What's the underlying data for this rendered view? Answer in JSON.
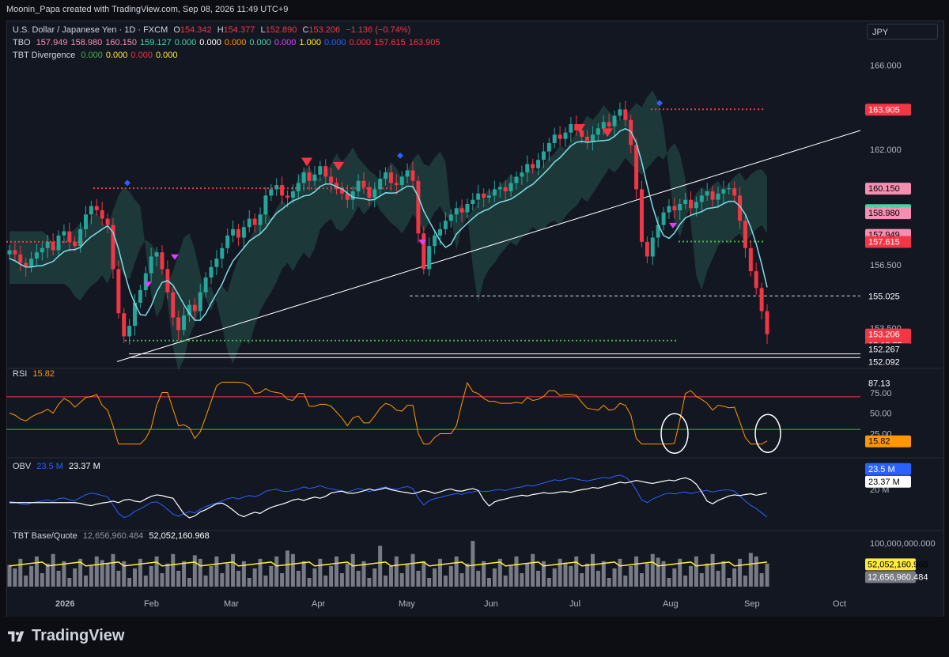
{
  "header": {
    "creator_text": "Moonin_Papa created with TradingView.com, Sep 08, 2026 11:49 UTC+9",
    "symbol_button": "JPY"
  },
  "legend": {
    "main": {
      "title": "U.S. Dollar / Japanese Yen · 1D · FXCM",
      "o_label": "O",
      "o": "154.342",
      "h_label": "H",
      "h": "154.377",
      "l_label": "L",
      "l": "152.890",
      "c_label": "C",
      "c": "153.206",
      "change": "−1.136 (−0.74%)"
    },
    "tbo": {
      "label": "TBO",
      "values": [
        {
          "v": "157.949",
          "color": "#f48fb1"
        },
        {
          "v": "158.980",
          "color": "#f48fb1"
        },
        {
          "v": "160.150",
          "color": "#f48fb1"
        },
        {
          "v": "159.127",
          "color": "#4dd0a8"
        },
        {
          "v": "0.000",
          "color": "#4dd0a8"
        },
        {
          "v": "0.000",
          "color": "#ffffff"
        },
        {
          "v": "0.000",
          "color": "#ff9800"
        },
        {
          "v": "0.000",
          "color": "#4dd0a8"
        },
        {
          "v": "0.000",
          "color": "#e040fb"
        },
        {
          "v": "1.000",
          "color": "#ffeb3b"
        },
        {
          "v": "0.000",
          "color": "#2962ff"
        },
        {
          "v": "0.000",
          "color": "#f23645"
        },
        {
          "v": "157.615",
          "color": "#f23645"
        },
        {
          "v": "163.905",
          "color": "#f23645"
        }
      ]
    },
    "tbt": {
      "label": "TBT Divergence",
      "values": [
        {
          "v": "0.000",
          "color": "#4caf50"
        },
        {
          "v": "0.000",
          "color": "#ffeb3b"
        },
        {
          "v": "0.000",
          "color": "#f23645"
        },
        {
          "v": "0.000",
          "color": "#ffeb3b"
        }
      ]
    },
    "rsi": {
      "label": "RSI",
      "value": "15.82"
    },
    "obv": {
      "label": "OBV",
      "v1": "23.5 M",
      "v2": "23.37 M"
    },
    "base_quote": {
      "label": "TBT Base/Quote",
      "v1": "12,656,960.484",
      "v2": "52,052,160.968"
    }
  },
  "axis": {
    "price_ticks": [
      "166.000",
      "162.000",
      "156.500",
      "153.500"
    ],
    "price_tags": [
      {
        "text": "163.905",
        "bg": "#f23645",
        "fg": "#ffffff"
      },
      {
        "text": "160.150",
        "bg": "#f48fb1",
        "fg": "#000000"
      },
      {
        "text": "159.127",
        "bg": "#4dd0a8",
        "fg": "#000000"
      },
      {
        "text": "158.980",
        "bg": "#f48fb1",
        "fg": "#000000"
      },
      {
        "text": "157.949",
        "bg": "#f48fb1",
        "fg": "#000000"
      },
      {
        "text": "157.615",
        "bg": "#f23645",
        "fg": "#ffffff"
      },
      {
        "text": "155.025",
        "bg": "#131722",
        "fg": "#ffffff"
      },
      {
        "text": "153.206",
        "bg": "#f23645",
        "fg": "#ffffff"
      },
      {
        "text": "18:10:55",
        "bg": "#f23645",
        "fg": "#ffffff"
      },
      {
        "text": "152.267",
        "bg": "#131722",
        "fg": "#ffffff"
      },
      {
        "text": "152.092",
        "bg": "#131722",
        "fg": "#ffffff"
      }
    ],
    "rsi_ticks": [
      "75.00",
      "50.00",
      "25.00"
    ],
    "rsi_tags": [
      {
        "text": "87.13",
        "bg": "#131722",
        "fg": "#ffffff"
      },
      {
        "text": "15.82",
        "bg": "#ff9800",
        "fg": "#000000"
      }
    ],
    "obv_ticks": [
      "20 M"
    ],
    "obv_tags": [
      {
        "text": "23.5 M",
        "bg": "#2962ff",
        "fg": "#ffffff"
      },
      {
        "text": "23.37 M",
        "bg": "#ffffff",
        "fg": "#000000"
      }
    ],
    "vol_ticks": [
      "100,000,000.000"
    ],
    "vol_tags": [
      {
        "text": "52,052,160.968",
        "bg": "#ffeb3b",
        "fg": "#000000"
      },
      {
        "text": "12,656,960.484",
        "bg": "#787b86",
        "fg": "#ffffff"
      }
    ],
    "time_labels": [
      "2026",
      "Feb",
      "Mar",
      "Apr",
      "May",
      "Jun",
      "Jul",
      "Aug",
      "Sep",
      "Oct"
    ]
  },
  "chart_data": {
    "type": "candlestick",
    "title": "U.S. Dollar / Japanese Yen · 1D · FXCM",
    "x_labels": [
      "2026",
      "Feb",
      "Mar",
      "Apr",
      "May",
      "Jun",
      "Jul",
      "Aug",
      "Sep",
      "Oct"
    ],
    "price_range": [
      151.8,
      167.0
    ],
    "ohlc_last": {
      "open": 154.342,
      "high": 154.377,
      "low": 152.89,
      "close": 153.206
    },
    "levels": {
      "resistance_top": 163.905,
      "resistance_mid": 160.15,
      "support_155": 155.025,
      "support_152_267": 152.267,
      "support_152_092": 152.092
    },
    "close_series": [
      157.2,
      157.0,
      156.6,
      156.4,
      156.8,
      157.1,
      157.3,
      157.6,
      157.2,
      157.9,
      158.1,
      157.6,
      157.4,
      158.2,
      158.9,
      159.3,
      159.1,
      158.7,
      158.4,
      156.3,
      154.2,
      153.1,
      153.6,
      154.7,
      155.3,
      156.1,
      156.9,
      157.1,
      156.3,
      155.2,
      154.0,
      153.4,
      154.1,
      154.6,
      154.3,
      155.2,
      155.9,
      156.4,
      156.8,
      157.3,
      157.9,
      158.2,
      157.8,
      158.3,
      158.7,
      158.4,
      158.9,
      159.8,
      160.1,
      160.3,
      159.8,
      159.7,
      160.0,
      160.4,
      160.9,
      160.5,
      160.8,
      161.2,
      160.7,
      160.4,
      160.1,
      159.9,
      159.6,
      160.0,
      160.5,
      160.2,
      159.7,
      160.1,
      160.6,
      160.9,
      160.4,
      160.3,
      160.7,
      161.0,
      160.5,
      158.0,
      156.3,
      157.4,
      157.9,
      158.2,
      158.6,
      158.9,
      159.2,
      159.0,
      159.4,
      159.6,
      159.9,
      159.7,
      159.8,
      160.1,
      160.2,
      160.0,
      160.4,
      160.7,
      160.9,
      161.3,
      161.1,
      161.5,
      161.9,
      162.3,
      162.7,
      162.5,
      162.8,
      163.2,
      162.9,
      162.6,
      162.4,
      162.7,
      163.0,
      163.3,
      163.1,
      163.6,
      163.9,
      163.4,
      162.2,
      160.1,
      157.6,
      156.9,
      157.8,
      158.4,
      159.0,
      159.3,
      159.1,
      159.4,
      159.6,
      159.2,
      159.5,
      159.8,
      160.0,
      159.6,
      159.9,
      160.1,
      160.15,
      159.8,
      158.6,
      157.3,
      156.2,
      155.4,
      154.3,
      153.206
    ],
    "rsi": {
      "last": 15.82,
      "max_label": 87.13,
      "overbought": 70,
      "oversold": 30
    },
    "obv": {
      "last": 23.5,
      "signal": 23.37,
      "unit": "M"
    },
    "base_quote": {
      "last": 12656960.484,
      "avg": 52052160.968
    }
  }
}
